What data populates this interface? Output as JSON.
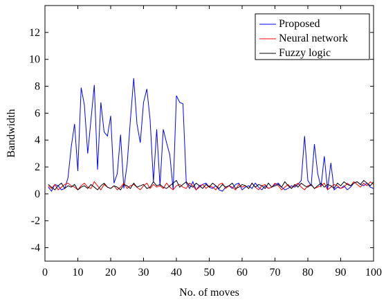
{
  "chart_data": {
    "type": "line",
    "xlabel": "No. of moves",
    "ylabel": "Bandwidth",
    "xlim": [
      0,
      100
    ],
    "ylim": [
      -5,
      14
    ],
    "xticks": [
      0,
      10,
      20,
      30,
      40,
      50,
      60,
      70,
      80,
      90,
      100
    ],
    "yticks": [
      -4,
      -2,
      0,
      2,
      4,
      6,
      8,
      10,
      12
    ],
    "grid": false,
    "legend_position": "top-right",
    "series": [
      {
        "name": "Proposed",
        "color": "#0000ff",
        "x": [
          1,
          2,
          3,
          4,
          5,
          6,
          7,
          8,
          9,
          10,
          11,
          12,
          13,
          14,
          15,
          16,
          17,
          18,
          19,
          20,
          21,
          22,
          23,
          24,
          25,
          26,
          27,
          28,
          29,
          30,
          31,
          32,
          33,
          34,
          35,
          36,
          37,
          38,
          39,
          40,
          41,
          42,
          43,
          44,
          45,
          46,
          47,
          48,
          49,
          50,
          51,
          52,
          53,
          54,
          55,
          56,
          57,
          58,
          59,
          60,
          61,
          62,
          63,
          64,
          65,
          66,
          67,
          68,
          69,
          70,
          71,
          72,
          73,
          74,
          75,
          76,
          77,
          78,
          79,
          80,
          81,
          82,
          83,
          84,
          85,
          86,
          87,
          88,
          89,
          90,
          91,
          92,
          93,
          94,
          95,
          96,
          97,
          98,
          99,
          100
        ],
        "y": [
          0.5,
          0.2,
          0.7,
          0.6,
          0.3,
          0.4,
          1.2,
          3.5,
          5.2,
          1.7,
          7.9,
          6.6,
          3.0,
          5.5,
          8.1,
          1.8,
          6.8,
          4.6,
          4.3,
          5.8,
          0.8,
          1.5,
          4.4,
          0.4,
          2.2,
          5.5,
          8.6,
          5.2,
          3.8,
          6.8,
          7.8,
          5.5,
          0.9,
          4.8,
          0.6,
          4.8,
          3.8,
          2.9,
          0.3,
          7.3,
          6.8,
          6.7,
          0.8,
          0.4,
          0.9,
          0.3,
          0.6,
          0.7,
          0.8,
          0.5,
          0.4,
          0.6,
          0.3,
          0.2,
          0.5,
          0.6,
          0.4,
          0.7,
          0.8,
          0.3,
          0.5,
          0.6,
          0.4,
          0.8,
          0.5,
          0.3,
          0.6,
          0.4,
          0.5,
          0.7,
          0.8,
          0.5,
          0.3,
          0.4,
          0.6,
          0.5,
          0.7,
          1.0,
          4.3,
          1.0,
          0.6,
          3.7,
          1.5,
          0.5,
          2.8,
          0.3,
          2.3,
          0.3,
          0.5,
          0.4,
          0.6,
          0.3,
          0.5,
          0.8,
          0.9,
          0.7,
          0.6,
          0.8,
          0.5,
          0.4
        ]
      },
      {
        "name": "Neural network",
        "color": "#ff0000",
        "x": [
          1,
          2,
          3,
          4,
          5,
          6,
          7,
          8,
          9,
          10,
          11,
          12,
          13,
          14,
          15,
          16,
          17,
          18,
          19,
          20,
          21,
          22,
          23,
          24,
          25,
          26,
          27,
          28,
          29,
          30,
          31,
          32,
          33,
          34,
          35,
          36,
          37,
          38,
          39,
          40,
          41,
          42,
          43,
          44,
          45,
          46,
          47,
          48,
          49,
          50,
          51,
          52,
          53,
          54,
          55,
          56,
          57,
          58,
          59,
          60,
          61,
          62,
          63,
          64,
          65,
          66,
          67,
          68,
          69,
          70,
          71,
          72,
          73,
          74,
          75,
          76,
          77,
          78,
          79,
          80,
          81,
          82,
          83,
          84,
          85,
          86,
          87,
          88,
          89,
          90,
          91,
          92,
          93,
          94,
          95,
          96,
          97,
          98,
          99,
          100
        ],
        "y": [
          0.6,
          0.4,
          0.7,
          0.3,
          0.5,
          0.7,
          0.8,
          0.6,
          0.5,
          0.3,
          0.6,
          0.8,
          0.5,
          0.4,
          0.9,
          0.6,
          0.3,
          0.7,
          0.5,
          0.4,
          0.6,
          0.3,
          0.5,
          0.8,
          0.4,
          0.6,
          0.7,
          0.5,
          0.3,
          0.6,
          0.8,
          0.4,
          0.7,
          0.5,
          0.6,
          0.4,
          0.8,
          0.5,
          0.3,
          0.6,
          0.7,
          0.5,
          0.4,
          0.8,
          0.6,
          0.3,
          0.5,
          0.7,
          0.4,
          0.6,
          0.5,
          0.3,
          0.7,
          0.8,
          0.4,
          0.6,
          0.5,
          0.3,
          0.7,
          0.5,
          0.6,
          0.4,
          0.8,
          0.5,
          0.3,
          0.6,
          0.7,
          0.4,
          0.5,
          0.8,
          0.6,
          0.3,
          0.5,
          0.7,
          0.4,
          0.6,
          0.8,
          0.5,
          0.3,
          0.6,
          0.7,
          0.4,
          0.5,
          0.6,
          0.8,
          0.3,
          0.5,
          0.7,
          0.6,
          0.4,
          0.5,
          0.8,
          0.6,
          0.9,
          0.7,
          0.5,
          0.8,
          0.6,
          0.9,
          0.7
        ]
      },
      {
        "name": "Fuzzy logic",
        "color": "#000000",
        "x": [
          1,
          2,
          3,
          4,
          5,
          6,
          7,
          8,
          9,
          10,
          11,
          12,
          13,
          14,
          15,
          16,
          17,
          18,
          19,
          20,
          21,
          22,
          23,
          24,
          25,
          26,
          27,
          28,
          29,
          30,
          31,
          32,
          33,
          34,
          35,
          36,
          37,
          38,
          39,
          40,
          41,
          42,
          43,
          44,
          45,
          46,
          47,
          48,
          49,
          50,
          51,
          52,
          53,
          54,
          55,
          56,
          57,
          58,
          59,
          60,
          61,
          62,
          63,
          64,
          65,
          66,
          67,
          68,
          69,
          70,
          71,
          72,
          73,
          74,
          75,
          76,
          77,
          78,
          79,
          80,
          81,
          82,
          83,
          84,
          85,
          86,
          87,
          88,
          89,
          90,
          91,
          92,
          93,
          94,
          95,
          96,
          97,
          98,
          99,
          100
        ],
        "y": [
          0.7,
          0.5,
          0.3,
          0.6,
          0.8,
          0.4,
          0.6,
          0.5,
          0.7,
          0.3,
          0.5,
          0.6,
          0.4,
          0.7,
          0.5,
          0.3,
          0.6,
          0.8,
          0.5,
          0.4,
          0.6,
          0.5,
          0.3,
          0.7,
          0.6,
          0.4,
          0.8,
          0.5,
          0.6,
          0.7,
          0.4,
          0.5,
          0.9,
          0.6,
          0.7,
          0.5,
          0.4,
          0.6,
          0.8,
          1.0,
          0.5,
          0.7,
          0.9,
          0.6,
          0.5,
          0.8,
          0.6,
          0.4,
          0.7,
          0.5,
          0.8,
          0.6,
          0.4,
          0.7,
          0.5,
          0.6,
          0.8,
          0.4,
          0.5,
          0.7,
          0.6,
          0.4,
          0.8,
          0.5,
          0.7,
          0.6,
          0.4,
          0.8,
          0.5,
          0.6,
          0.7,
          0.5,
          0.9,
          0.6,
          0.4,
          0.7,
          0.5,
          0.8,
          0.6,
          0.5,
          0.7,
          0.4,
          0.6,
          0.8,
          0.5,
          0.7,
          0.6,
          0.4,
          0.8,
          0.6,
          0.9,
          0.7,
          0.6,
          0.8,
          0.9,
          0.7,
          1.0,
          0.8,
          0.6,
          0.9
        ]
      }
    ]
  }
}
